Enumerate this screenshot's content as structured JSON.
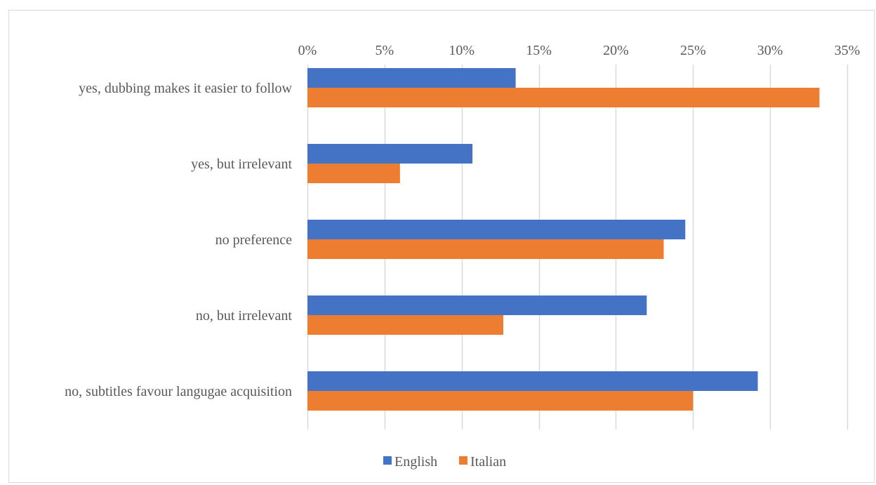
{
  "chart_data": {
    "type": "bar",
    "orientation": "horizontal",
    "title": "",
    "xlabel": "",
    "ylabel": "",
    "categories": [
      "yes, dubbing makes it easier to follow",
      "yes, but irrelevant",
      "no preference",
      "no, but irrelevant",
      "no, subtitles favour langugae acquisition"
    ],
    "series": [
      {
        "name": "English",
        "color": "#4472c4",
        "values": [
          13.5,
          10.7,
          24.5,
          22.0,
          29.2
        ]
      },
      {
        "name": "Italian",
        "color": "#ed7d31",
        "values": [
          33.2,
          6.0,
          23.1,
          12.7,
          25.0
        ]
      }
    ],
    "xlim": [
      0,
      35
    ],
    "x_ticks": [
      0,
      5,
      10,
      15,
      20,
      25,
      30,
      35
    ],
    "x_tick_labels": [
      "0%",
      "5%",
      "10%",
      "15%",
      "20%",
      "25%",
      "30%",
      "35%"
    ],
    "x_axis_position": "top",
    "grid": true,
    "gridline_color": "#d9d9d9",
    "legend_position": "bottom"
  }
}
